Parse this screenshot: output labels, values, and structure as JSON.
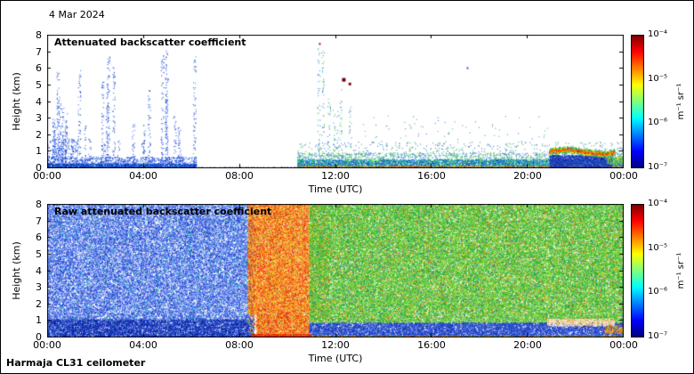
{
  "figure": {
    "date": "4 Mar 2024",
    "instrument": "Harmaja CL31 ceilometer",
    "background": "#ffffff"
  },
  "chart_data": [
    {
      "type": "heatmap",
      "title": "Attenuated backscatter coefficient",
      "xlabel": "Time (UTC)",
      "ylabel": "Height (km)",
      "x_ticks": [
        "00:00",
        "04:00",
        "08:00",
        "12:00",
        "16:00",
        "20:00",
        "00:00"
      ],
      "x_range_hours": [
        0,
        24
      ],
      "y_ticks": [
        "0",
        "1",
        "2",
        "3",
        "4",
        "5",
        "6",
        "7",
        "8"
      ],
      "ylim": [
        0,
        8
      ],
      "grid": false,
      "plot_bg": "#ffffff",
      "seed": 7,
      "colorbar": {
        "label": "m⁻¹ sr⁻¹",
        "ticks": [
          "10⁻⁴",
          "10⁻⁵",
          "10⁻⁶",
          "10⁻⁷"
        ],
        "scale": "log",
        "range": [
          1e-07,
          0.0001
        ],
        "colormap": "jet"
      },
      "regions": [
        {
          "t": [
            0,
            6.2
          ],
          "h": [
            0,
            0.3
          ],
          "density": 2.2,
          "size": 1,
          "colors": [
            "#0022bb",
            "#0033cc",
            "#1144dd",
            "#0b2fa0",
            "#2255ee",
            "#0099aa"
          ]
        },
        {
          "t": [
            0,
            6.2
          ],
          "h": [
            0.3,
            0.7
          ],
          "density": 0.5,
          "size": 1,
          "colors": [
            "#1144dd",
            "#3366ee",
            "#0033bb"
          ]
        },
        {
          "t": [
            0,
            1.3
          ],
          "h": [
            0.7,
            1.8
          ],
          "density": 0.25,
          "size": 1,
          "colors": [
            "#2255dd",
            "#4477ee",
            "#1144cc"
          ]
        },
        {
          "t": [
            6.2,
            10.5
          ],
          "h": [
            0,
            0.09
          ],
          "density": 1.2,
          "size": 1,
          "colors": [
            "#1144cc",
            "#33aa66",
            "#ff8800",
            "#2255dd"
          ]
        },
        {
          "t": [
            8.8,
            10.5
          ],
          "h": [
            0,
            0.06
          ],
          "density": 1.6,
          "size": 1,
          "colors": [
            "#cc3300",
            "#ff6600",
            "#aa6622"
          ]
        },
        {
          "t": [
            10.4,
            24
          ],
          "h": [
            0,
            0.55
          ],
          "density": 1.7,
          "size": 1,
          "colors": [
            "#1144dd",
            "#00bbcc",
            "#22cc66",
            "#55dd44",
            "#3366ee",
            "#0033aa"
          ]
        },
        {
          "t": [
            10.4,
            24
          ],
          "h": [
            0,
            0.14
          ],
          "density": 1.5,
          "size": 1,
          "colors": [
            "#ffcc00",
            "#ff8800",
            "#ee4400",
            "#cc2200",
            "#88cc22"
          ]
        },
        {
          "t": [
            10.4,
            24
          ],
          "h": [
            0.55,
            0.95
          ],
          "density": 0.38,
          "size": 1,
          "colors": [
            "#33bb55",
            "#2299cc",
            "#3366ee",
            "#66cc44"
          ]
        },
        {
          "t": [
            10.4,
            24
          ],
          "h": [
            0.95,
            1.6
          ],
          "density": 0.07,
          "size": 1,
          "colors": [
            "#3366dd",
            "#33aa66"
          ]
        },
        {
          "t": [
            13,
            21
          ],
          "h": [
            1.6,
            3.2
          ],
          "density": 0.01,
          "size": 1,
          "colors": [
            "#3366dd",
            "#44aa77"
          ]
        },
        {
          "t": [
            20.9,
            23.5
          ],
          "h": [
            0,
            0.8
          ],
          "density": 1.9,
          "size": 1,
          "colors": [
            "#0a1e96",
            "#1133bb",
            "#2244cc",
            "#3355dd",
            "#223399"
          ]
        },
        {
          "t": [
            23.3,
            24
          ],
          "h": [
            0.25,
            0.75
          ],
          "density": 1.3,
          "size": 1,
          "colors": [
            "#55cc33",
            "#aadd22",
            "#ffcc22",
            "#33aa55",
            "#22bbaa"
          ]
        }
      ],
      "streak_groups": [
        {
          "count": 30,
          "t_range": [
            0.05,
            6.15
          ],
          "top_range": [
            1.5,
            7.6
          ],
          "base": 0.4,
          "density": 0.5,
          "jitter": 1.5,
          "colors": [
            "#1144dd",
            "#2255ee",
            "#0033bb",
            "#4466ee"
          ]
        },
        {
          "count": 7,
          "t_range": [
            11.15,
            12.8
          ],
          "top_range": [
            3.0,
            7.4
          ],
          "base": 0.6,
          "density": 0.35,
          "jitter": 1.5,
          "colors": [
            "#2299cc",
            "#33bb66",
            "#3366dd",
            "#77cc44"
          ]
        },
        {
          "count": 4,
          "t_range": [
            14.5,
            19.5
          ],
          "top_range": [
            1.2,
            2.4
          ],
          "base": 0.8,
          "density": 0.2,
          "jitter": 1,
          "colors": [
            "#3366dd",
            "#44aa77"
          ]
        }
      ],
      "band": {
        "t": [
          20.9,
          23.6
        ],
        "center": 1.0,
        "amp": 0.12,
        "freq": 2.2,
        "thick": 0.16,
        "per_col": 26,
        "core": [
          "#dd2200",
          "#ff6600",
          "#ffaa00",
          "#ff4400"
        ],
        "edge": [
          "#ffdd00",
          "#88cc22",
          "#22aa55",
          "#00bbaa"
        ]
      },
      "blobs": [
        {
          "t": 12.35,
          "h": 5.3,
          "size": 4,
          "color": "#70000f"
        },
        {
          "t": 12.6,
          "h": 5.05,
          "size": 3,
          "color": "#8a0a1a"
        },
        {
          "t": 11.35,
          "h": 7.45,
          "size": 2,
          "color": "#aa1100"
        },
        {
          "t": 17.5,
          "h": 6.0,
          "size": 2,
          "color": "#3355cc"
        }
      ]
    },
    {
      "type": "heatmap",
      "title": "Raw attenuated backscatter coefficient",
      "xlabel": "Time (UTC)",
      "ylabel": "Height (km)",
      "x_ticks": [
        "00:00",
        "04:00",
        "08:00",
        "12:00",
        "16:00",
        "20:00",
        "00:00"
      ],
      "x_range_hours": [
        0,
        24
      ],
      "y_ticks": [
        "0",
        "1",
        "2",
        "3",
        "4",
        "5",
        "6",
        "7",
        "8"
      ],
      "ylim": [
        0,
        8
      ],
      "grid": false,
      "plot_bg": "#ffffff",
      "seed": 99,
      "colorbar": {
        "label": "m⁻¹ sr⁻¹",
        "ticks": [
          "10⁻⁴",
          "10⁻⁵",
          "10⁻⁶",
          "10⁻⁷"
        ],
        "scale": "log",
        "range": [
          1e-07,
          0.0001
        ],
        "colormap": "jet"
      },
      "regions": [
        {
          "t": [
            0,
            8.6
          ],
          "h": [
            0,
            8
          ],
          "density": 1.15,
          "size": 1,
          "colors": [
            "#1133cc",
            "#2244dd",
            "#3355ee",
            "#0b2fa0",
            "#4466ee",
            "#6688ff",
            "#99bbff"
          ]
        },
        {
          "t": [
            0,
            8.6
          ],
          "h": [
            0,
            8
          ],
          "density": 0.08,
          "size": 1,
          "colors": [
            "#00bbbb",
            "#33ccaa",
            "#ffffff"
          ]
        },
        {
          "t": [
            0,
            8.6
          ],
          "h": [
            0,
            1.1
          ],
          "density": 0.9,
          "size": 1,
          "colors": [
            "#0a1e96",
            "#1133bb",
            "#0022aa"
          ]
        },
        {
          "t": [
            8.35,
            10.9
          ],
          "h": [
            1.4,
            8
          ],
          "density": 1.9,
          "size": 1,
          "colors": [
            "#ff5500",
            "#ee3300",
            "#ff7700",
            "#ffaa00",
            "#dd2200",
            "#ff8833",
            "#ffcc22"
          ]
        },
        {
          "t": [
            8.7,
            10.9
          ],
          "h": [
            0.25,
            1.4
          ],
          "density": 1.8,
          "size": 1,
          "colors": [
            "#ff5500",
            "#ee3300",
            "#ff7700",
            "#ffaa00",
            "#dd2200"
          ]
        },
        {
          "t": [
            8.35,
            10.9
          ],
          "h": [
            0.25,
            8
          ],
          "density": 0.28,
          "size": 1,
          "colors": [
            "#ffee55",
            "#aadd33",
            "#cc2244"
          ]
        },
        {
          "t": [
            10.9,
            11.7
          ],
          "h": [
            1,
            8
          ],
          "density": 0.55,
          "size": 1,
          "colors": [
            "#ff8800",
            "#ffbb00",
            "#ee5500"
          ]
        },
        {
          "t": [
            10.9,
            24
          ],
          "h": [
            0.9,
            8
          ],
          "density": 1.7,
          "size": 1,
          "colors": [
            "#33bb33",
            "#44cc33",
            "#66cc22",
            "#22aa44",
            "#88dd22",
            "#aadd33",
            "#119944"
          ]
        },
        {
          "t": [
            10.9,
            24
          ],
          "h": [
            0.9,
            8
          ],
          "density": 0.14,
          "size": 1,
          "colors": [
            "#ffcc22",
            "#ff8822",
            "#ee4422",
            "#2266dd",
            "#ffffff"
          ]
        },
        {
          "t": [
            10.9,
            24
          ],
          "h": [
            0,
            0.9
          ],
          "density": 1.7,
          "size": 1,
          "colors": [
            "#1133cc",
            "#2244dd",
            "#0b2fa0",
            "#3355ee",
            "#2255aa"
          ]
        },
        {
          "t": [
            8.5,
            11.0
          ],
          "h": [
            0,
            0.22
          ],
          "density": 3.2,
          "size": 1,
          "colors": [
            "#cc1100",
            "#ee3300",
            "#ff5500"
          ]
        },
        {
          "t": [
            20.8,
            23.6
          ],
          "h": [
            0.7,
            1.15
          ],
          "density": 1.6,
          "size": 1,
          "colors": [
            "#ffffff",
            "#ffee99",
            "#ffbb55",
            "#ff7733",
            "#ffffff",
            "#eeeeee"
          ]
        },
        {
          "t": [
            11,
            24
          ],
          "h": [
            0,
            0.12
          ],
          "density": 1.3,
          "size": 1,
          "colors": [
            "#ff9900",
            "#ffcc00",
            "#dd4400",
            "#33bb55"
          ]
        },
        {
          "t": [
            23.2,
            24
          ],
          "h": [
            0.25,
            0.75
          ],
          "density": 1.2,
          "size": 1,
          "colors": [
            "#ffcc22",
            "#ff8833",
            "#dd3300",
            "#aadd33"
          ]
        }
      ],
      "streak_groups": [],
      "band": null,
      "blobs": []
    }
  ]
}
